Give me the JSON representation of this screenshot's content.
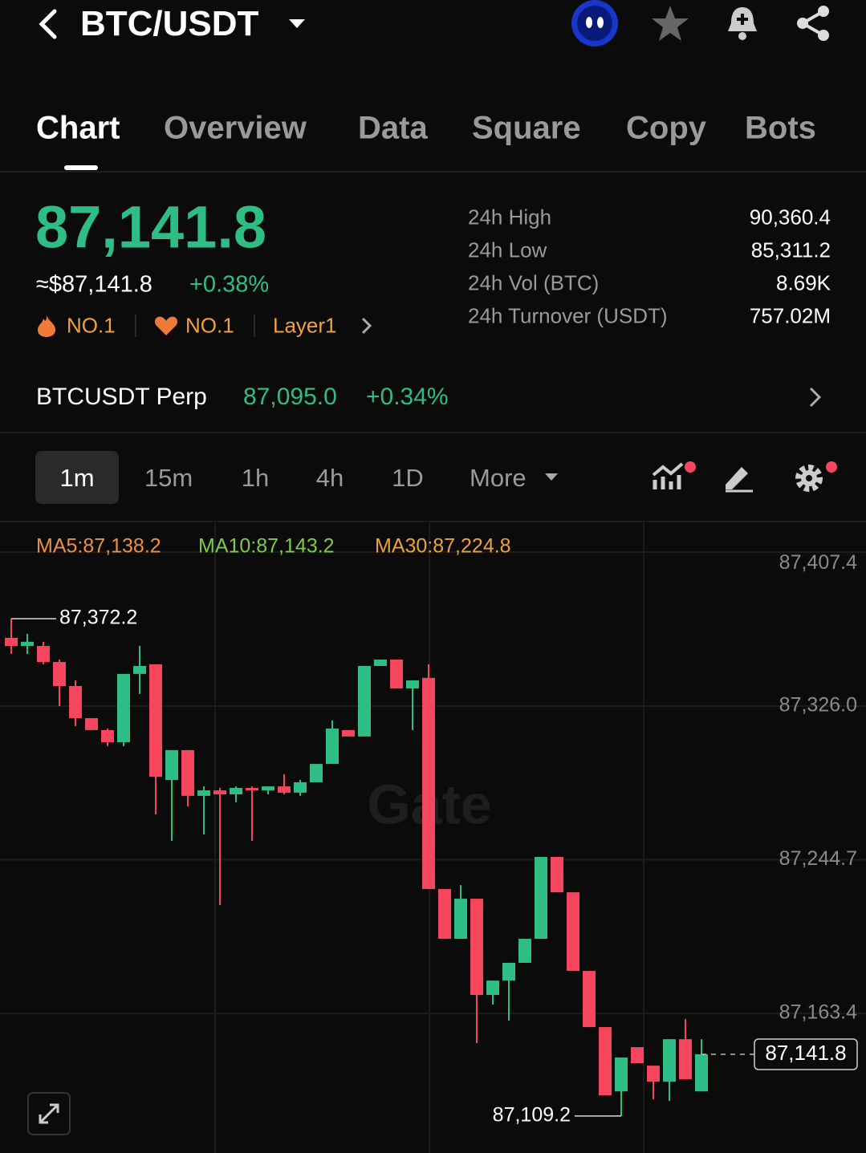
{
  "header": {
    "pair": "BTC/USDT"
  },
  "tabs": [
    "Chart",
    "Overview",
    "Data",
    "Square",
    "Copy",
    "Bots"
  ],
  "price": {
    "last": "87,141.8",
    "fiat": "≈$87,141.8",
    "change": "+0.38%",
    "tags": [
      "NO.1",
      "NO.1",
      "Layer1"
    ]
  },
  "stats": [
    {
      "label": "24h High",
      "value": "90,360.4"
    },
    {
      "label": "24h Low",
      "value": "85,311.2"
    },
    {
      "label": "24h Vol (BTC)",
      "value": "8.69K"
    },
    {
      "label": "24h Turnover (USDT)",
      "value": "757.02M"
    }
  ],
  "perp": {
    "name": "BTCUSDT Perp",
    "price": "87,095.0",
    "change": "+0.34%"
  },
  "timeframes": [
    "1m",
    "15m",
    "1h",
    "4h",
    "1D",
    "More"
  ],
  "ma_legend": [
    {
      "label": "MA5:87,138.2",
      "color": "#e8914a"
    },
    {
      "label": "MA10:87,143.2",
      "color": "#7ccc4a"
    },
    {
      "label": "MA30:87,224.8",
      "color": "#e8a43a"
    }
  ],
  "chart_data": {
    "type": "candlestick",
    "watermark": "Gate",
    "up_color": "#2ebd85",
    "down_color": "#f6465d",
    "open": [
      87362.1,
      87357.8,
      87357.8,
      87349.3,
      87336.6,
      87319.6,
      87313.3,
      87306.9,
      87343.0,
      87348.1,
      87286.9,
      87302.7,
      87278.5,
      87281.4,
      87279.3,
      87282.7,
      87281.4,
      87283.5,
      87280.2,
      87285.7,
      87295.4,
      87313.3,
      87309.9,
      87347.2,
      87350.6,
      87335.3,
      87340.9,
      87229.2,
      87202.9,
      87224.1,
      87173.2,
      87180.8,
      87190.2,
      87202.9,
      87246.2,
      87227.5,
      87185.9,
      87156.2,
      87122.2,
      87145.6,
      87135.8,
      87127.3,
      87149.8,
      87122.2
    ],
    "high": [
      87372.2,
      87364.2,
      87360.0,
      87350.6,
      87339.6,
      87319.6,
      87314.1,
      87343.0,
      87357.8,
      87348.1,
      87302.7,
      87302.7,
      87283.5,
      87282.7,
      87283.5,
      87283.5,
      87283.5,
      87289.9,
      87286.9,
      87295.4,
      87318.4,
      87313.3,
      87347.2,
      87350.6,
      87350.6,
      87339.6,
      87348.1,
      87229.2,
      87231.3,
      87224.1,
      87180.8,
      87190.2,
      87202.9,
      87246.2,
      87246.2,
      87227.5,
      87185.9,
      87156.2,
      87140.1,
      87145.6,
      87135.8,
      87149.8,
      87160.4,
      87149.8
    ],
    "low": [
      87353.6,
      87353.6,
      87348.1,
      87326.0,
      87315.4,
      87313.3,
      87304.8,
      87304.8,
      87332.4,
      87268.7,
      87254.7,
      87272.9,
      87258.1,
      87220.7,
      87275.1,
      87254.7,
      87279.3,
      87279.3,
      87278.5,
      87285.7,
      87295.4,
      87309.9,
      87309.9,
      87347.2,
      87335.3,
      87313.3,
      87229.2,
      87202.9,
      87202.9,
      87147.7,
      87168.1,
      87159.6,
      87190.2,
      87202.9,
      87227.5,
      87185.9,
      87156.2,
      87120.1,
      87109.2,
      87137.1,
      87118.0,
      87117.1,
      87128.6,
      87122.2
    ],
    "close": [
      87357.8,
      87360.0,
      87349.3,
      87336.6,
      87319.6,
      87313.3,
      87306.9,
      87343.0,
      87347.2,
      87288.6,
      87302.7,
      87278.5,
      87281.4,
      87279.3,
      87282.7,
      87281.4,
      87283.5,
      87280.2,
      87285.7,
      87295.4,
      87314.1,
      87309.9,
      87347.2,
      87350.6,
      87335.3,
      87339.6,
      87229.2,
      87202.9,
      87224.1,
      87173.2,
      87180.8,
      87190.2,
      87202.9,
      87246.2,
      87227.5,
      87185.9,
      87156.2,
      87120.1,
      87140.1,
      87137.1,
      87127.3,
      87149.8,
      87128.6,
      87141.8
    ],
    "ylim": [
      87089.6,
      87423.6
    ],
    "yticks": [
      {
        "value": 87407.4,
        "label": "87,407.4"
      },
      {
        "value": 87326.0,
        "label": "87,326.0"
      },
      {
        "value": 87244.7,
        "label": "87,244.7"
      },
      {
        "value": 87163.4,
        "label": "87,163.4"
      }
    ],
    "grid": true,
    "last_price": {
      "value": 87141.8,
      "label": "87,141.8"
    },
    "high_mark": {
      "value": 87372.2,
      "label": "87,372.2"
    },
    "low_mark": {
      "value": 87109.2,
      "label": "87,109.2"
    }
  }
}
